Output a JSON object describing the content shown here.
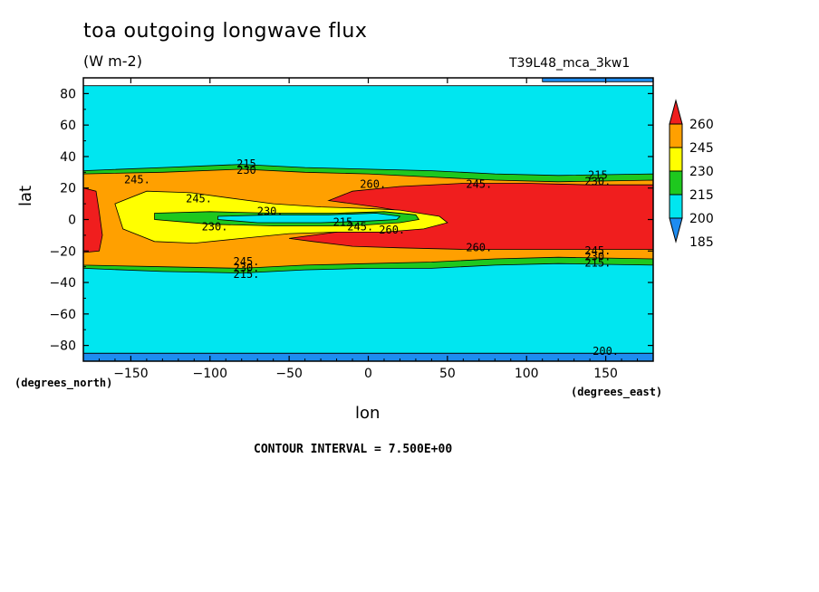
{
  "chart_data": {
    "type": "heatmap",
    "title": "toa outgoing longwave flux",
    "units": "(W m-2)",
    "run_label": "T39L48_mca_3kw1",
    "xlabel": "lon",
    "ylabel": "lat",
    "x_unit_label": "(degrees_east)",
    "y_unit_label": "(degrees_north)",
    "xlim": [
      -180,
      180
    ],
    "ylim": [
      -90,
      90
    ],
    "x_ticks": [
      -150,
      -100,
      -50,
      0,
      50,
      100,
      150
    ],
    "x_tick_labels": [
      "−150",
      "−100",
      "−50",
      "0",
      "50",
      "100",
      "150"
    ],
    "y_ticks": [
      80,
      60,
      40,
      20,
      0,
      -20,
      -40,
      -60,
      -80
    ],
    "y_tick_labels": [
      "80",
      "60",
      "40",
      "20",
      "0",
      "−20",
      "−40",
      "−60",
      "−80"
    ],
    "contour_interval_text": "CONTOUR INTERVAL = 7.500E+00",
    "colorbar": {
      "levels": [
        185,
        200,
        215,
        230,
        245,
        260
      ],
      "labels": [
        "260",
        "245",
        "230",
        "215",
        "200",
        "185"
      ],
      "colors": [
        "#1e8cf0",
        "#00e6f0",
        "#1ec81e",
        "#ffff00",
        "#ffa000",
        "#f01e1e"
      ]
    },
    "regions": [
      {
        "level": 200,
        "color": "#00e6f0",
        "poly": [
          [
            -180,
            85
          ],
          [
            180,
            85
          ],
          [
            180,
            -85
          ],
          [
            -180,
            -85
          ]
        ]
      },
      {
        "level": 185,
        "color": "#1e8cf0",
        "poly": [
          [
            -180,
            -85
          ],
          [
            180,
            -85
          ],
          [
            180,
            -90
          ],
          [
            -180,
            -90
          ]
        ]
      },
      {
        "level": 185,
        "color": "#1e8cf0",
        "poly": [
          [
            110,
            87.5
          ],
          [
            180,
            87.5
          ],
          [
            180,
            90
          ],
          [
            110,
            90
          ]
        ]
      },
      {
        "level": 215,
        "color": "#1ec81e",
        "poly": [
          [
            -180,
            31
          ],
          [
            -130,
            33
          ],
          [
            -80,
            35
          ],
          [
            -40,
            33
          ],
          [
            0,
            32
          ],
          [
            40,
            31
          ],
          [
            80,
            29
          ],
          [
            120,
            28
          ],
          [
            180,
            29
          ],
          [
            180,
            -29
          ],
          [
            120,
            -28
          ],
          [
            80,
            -29
          ],
          [
            40,
            -31
          ],
          [
            0,
            -31
          ],
          [
            -40,
            -32
          ],
          [
            -80,
            -34
          ],
          [
            -130,
            -33
          ],
          [
            -180,
            -31
          ]
        ]
      },
      {
        "level": 230,
        "color": "#ffa000",
        "poly": [
          [
            -180,
            29
          ],
          [
            -130,
            30
          ],
          [
            -80,
            32
          ],
          [
            -40,
            30
          ],
          [
            0,
            29
          ],
          [
            40,
            27
          ],
          [
            80,
            25
          ],
          [
            120,
            24
          ],
          [
            180,
            25
          ],
          [
            180,
            -25
          ],
          [
            120,
            -24
          ],
          [
            80,
            -25
          ],
          [
            40,
            -27
          ],
          [
            0,
            -28
          ],
          [
            -40,
            -29
          ],
          [
            -80,
            -31
          ],
          [
            -130,
            -30
          ],
          [
            -180,
            -29
          ]
        ]
      },
      {
        "level": 260,
        "color": "#f01e1e",
        "poly": [
          [
            -25,
            12
          ],
          [
            -10,
            18
          ],
          [
            20,
            21
          ],
          [
            60,
            23
          ],
          [
            100,
            23
          ],
          [
            140,
            22
          ],
          [
            180,
            22
          ],
          [
            180,
            -19
          ],
          [
            140,
            -19
          ],
          [
            100,
            -19
          ],
          [
            60,
            -19
          ],
          [
            20,
            -18
          ],
          [
            -10,
            -17
          ],
          [
            -35,
            -14
          ],
          [
            -50,
            -12
          ],
          [
            -20,
            -8
          ],
          [
            15,
            -2
          ],
          [
            40,
            0
          ],
          [
            30,
            4
          ],
          [
            5,
            8
          ]
        ]
      },
      {
        "level": 260,
        "color": "#f01e1e",
        "poly": [
          [
            -180,
            20
          ],
          [
            -172,
            18
          ],
          [
            -170,
            5
          ],
          [
            -168,
            -10
          ],
          [
            -170,
            -20
          ],
          [
            -180,
            -21
          ]
        ]
      },
      {
        "level": 245,
        "color": "#ffff00",
        "poly": [
          [
            -160,
            10
          ],
          [
            -140,
            18
          ],
          [
            -112,
            17
          ],
          [
            -90,
            14
          ],
          [
            -60,
            10
          ],
          [
            -30,
            8
          ],
          [
            0,
            7
          ],
          [
            20,
            6
          ],
          [
            45,
            2
          ],
          [
            50,
            -2
          ],
          [
            35,
            -6
          ],
          [
            10,
            -8
          ],
          [
            -20,
            -8
          ],
          [
            -50,
            -9
          ],
          [
            -80,
            -12
          ],
          [
            -110,
            -15
          ],
          [
            -135,
            -14
          ],
          [
            -155,
            -6
          ]
        ]
      },
      {
        "level": 230,
        "color": "#1ec81e",
        "poly": [
          [
            -135,
            4
          ],
          [
            -100,
            5
          ],
          [
            -60,
            4
          ],
          [
            -20,
            4
          ],
          [
            10,
            5
          ],
          [
            30,
            3
          ],
          [
            32,
            0
          ],
          [
            20,
            -2
          ],
          [
            -10,
            -4
          ],
          [
            -60,
            -4
          ],
          [
            -100,
            -3
          ],
          [
            -135,
            0
          ]
        ]
      },
      {
        "level": 215,
        "color": "#00e6f0",
        "poly": [
          [
            -95,
            2
          ],
          [
            -60,
            3
          ],
          [
            -25,
            3
          ],
          [
            5,
            4
          ],
          [
            20,
            2
          ],
          [
            18,
            0
          ],
          [
            0,
            -1
          ],
          [
            -30,
            -2
          ],
          [
            -70,
            -2
          ],
          [
            -95,
            0
          ]
        ]
      }
    ],
    "contour_labels": [
      {
        "lon": -77,
        "lat": 35,
        "text": "215"
      },
      {
        "lon": -77,
        "lat": 31,
        "text": "230"
      },
      {
        "lon": -146,
        "lat": 25,
        "text": "245."
      },
      {
        "lon": 3,
        "lat": 22,
        "text": "260."
      },
      {
        "lon": 70,
        "lat": 22,
        "text": "245."
      },
      {
        "lon": 145,
        "lat": 28,
        "text": "215"
      },
      {
        "lon": 145,
        "lat": 24,
        "text": "230."
      },
      {
        "lon": -107,
        "lat": 13,
        "text": "245."
      },
      {
        "lon": -62,
        "lat": 5,
        "text": "230."
      },
      {
        "lon": -14,
        "lat": -2,
        "text": "215."
      },
      {
        "lon": -5,
        "lat": -5,
        "text": "245."
      },
      {
        "lon": 15,
        "lat": -7,
        "text": "260."
      },
      {
        "lon": -97,
        "lat": -5,
        "text": "230."
      },
      {
        "lon": 70,
        "lat": -18,
        "text": "260."
      },
      {
        "lon": 145,
        "lat": -20,
        "text": "245."
      },
      {
        "lon": 145,
        "lat": -24,
        "text": "230."
      },
      {
        "lon": 145,
        "lat": -28,
        "text": "215."
      },
      {
        "lon": -77,
        "lat": -27,
        "text": "245."
      },
      {
        "lon": -77,
        "lat": -31,
        "text": "230."
      },
      {
        "lon": -77,
        "lat": -35,
        "text": "215."
      },
      {
        "lon": 150,
        "lat": -84,
        "text": "200."
      }
    ]
  }
}
